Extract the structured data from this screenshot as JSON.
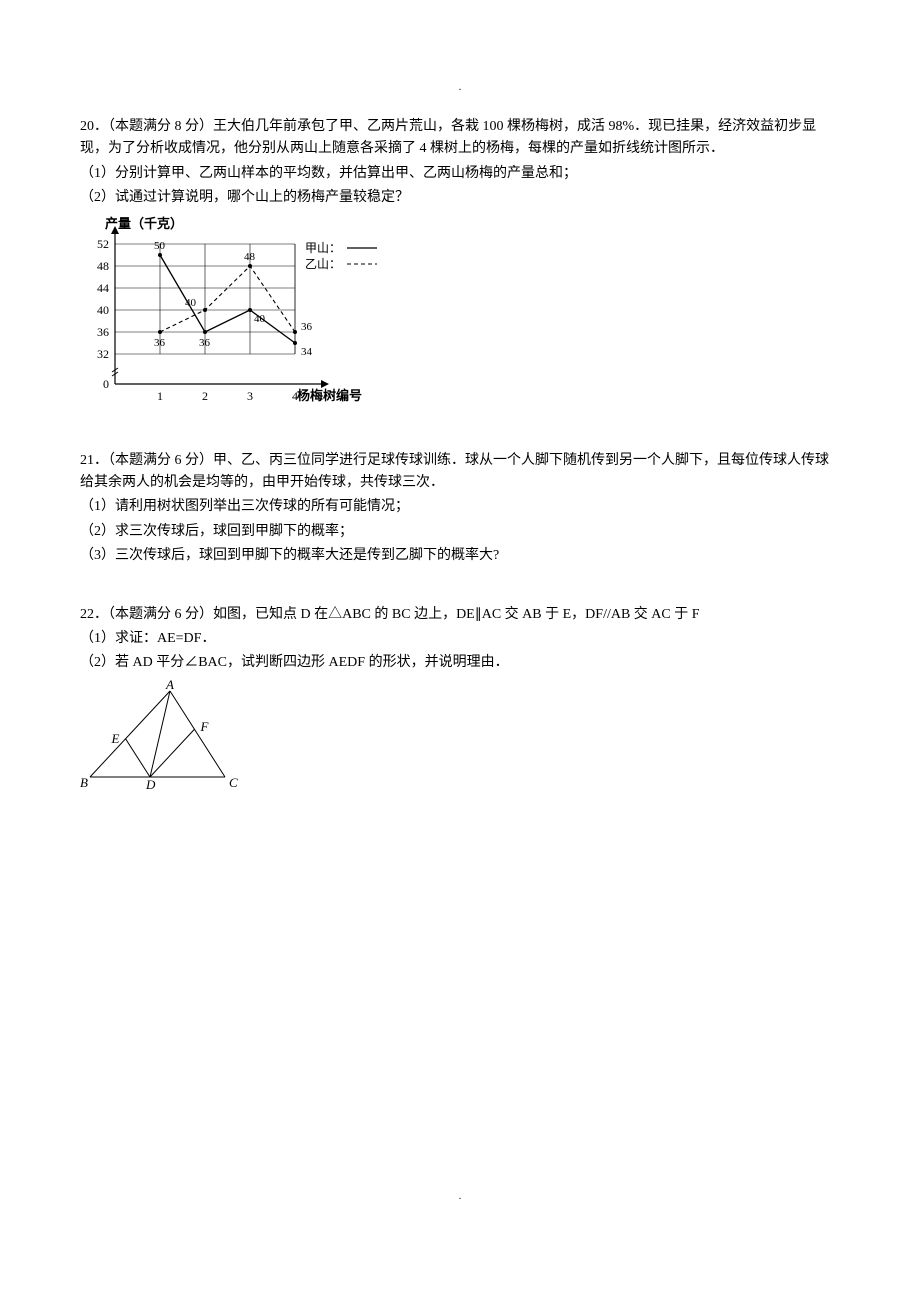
{
  "top_dot": ".",
  "bottom_dot": ".",
  "q20": {
    "header": "20．（本题满分 8 分）王大伯几年前承包了甲、乙两片荒山，各栽 100 棵杨梅树，成活 98%．现已挂果，经济效益初步显现，为了分析收成情况，他分别从两山上随意各采摘了 4 棵树上的杨梅，每棵的产量如折线统计图所示．",
    "p1": "（1）分别计算甲、乙两山样本的平均数，并估算出甲、乙两山杨梅的产量总和；",
    "p2": "（2）试通过计算说明，哪个山上的杨梅产量较稳定？",
    "chart": {
      "y_title": "产量（千克）",
      "x_title": "杨梅树编号",
      "legend_a": "甲山：",
      "legend_b": "乙山：",
      "y_ticks": [
        0,
        32,
        36,
        40,
        44,
        48,
        52
      ],
      "x_ticks": [
        1,
        2,
        3,
        4
      ],
      "series_a": [
        50,
        36,
        40,
        34
      ],
      "series_b": [
        36,
        40,
        48,
        36
      ],
      "label_a_extra": "40",
      "colors": {
        "axis": "#000000",
        "grid": "#000000",
        "line_a": "#000000",
        "line_b": "#000000"
      }
    }
  },
  "q21": {
    "header": "21．（本题满分 6 分）甲、乙、丙三位同学进行足球传球训练．球从一个人脚下随机传到另一个人脚下，且每位传球人传球给其余两人的机会是均等的，由甲开始传球，共传球三次．",
    "p1": "（1）请利用树状图列举出三次传球的所有可能情况；",
    "p2": "（2）求三次传球后，球回到甲脚下的概率；",
    "p3": "（3）三次传球后，球回到甲脚下的概率大还是传到乙脚下的概率大?"
  },
  "q22": {
    "header": "22．（本题满分 6 分）如图，已知点 D 在△ABC 的 BC 边上，DE∥AC 交 AB 于 E，DF//AB 交 AC 于 F",
    "p1": "（1）求证：AE=DF．",
    "p2": "（2）若 AD 平分∠BAC，试判断四边形 AEDF 的形状，并说明理由．",
    "labels": {
      "A": "A",
      "B": "B",
      "C": "C",
      "D": "D",
      "E": "E",
      "F": "F"
    }
  }
}
